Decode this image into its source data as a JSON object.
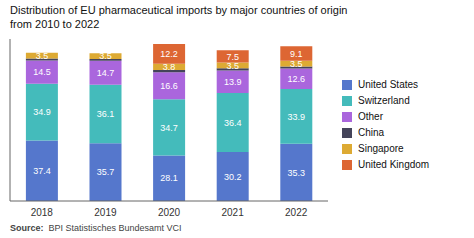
{
  "chart_data": {
    "type": "bar",
    "title": "Distribution of EU pharmaceutical imports by major countries of origin\nfrom 2010 to 2022",
    "categories": [
      "2018",
      "2019",
      "2020",
      "2021",
      "2022"
    ],
    "series": [
      {
        "name": "United States",
        "color": "#5577cc",
        "values": [
          37.4,
          35.7,
          28.1,
          30.2,
          35.3
        ],
        "value_labels": [
          "37.4",
          "35.7",
          "28.1",
          "30.2",
          "35.3"
        ]
      },
      {
        "name": "Switzerland",
        "color": "#44bbbb",
        "values": [
          34.9,
          36.1,
          34.7,
          36.4,
          33.9
        ],
        "value_labels": [
          "34.9",
          "36.1",
          "34.7",
          "36.4",
          "33.9"
        ]
      },
      {
        "name": "Other",
        "color": "#aa66dd",
        "values": [
          14.5,
          14.7,
          16.6,
          13.9,
          12.6
        ],
        "value_labels": [
          "14.5",
          "14.7",
          "16.6",
          "13.9",
          "12.6"
        ]
      },
      {
        "name": "China",
        "color": "#44445a",
        "values": [
          1.2,
          1.2,
          1.5,
          1.5,
          1.2
        ],
        "value_labels": [
          null,
          null,
          null,
          null,
          null
        ]
      },
      {
        "name": "Singapore",
        "color": "#ddaa33",
        "values": [
          3.5,
          3.5,
          3.8,
          3.5,
          3.5
        ],
        "value_labels": [
          "3.5",
          "3.5",
          "3.8",
          "3.5",
          "3.5"
        ]
      },
      {
        "name": "United Kingdom",
        "color": "#dd6633",
        "values": [
          0.0,
          0.0,
          12.2,
          7.5,
          9.1
        ],
        "value_labels": [
          null,
          null,
          "12.2",
          "7.5",
          "9.1"
        ]
      }
    ],
    "stacked": true,
    "data_labels": true,
    "ylim": [
      0,
      100
    ],
    "tick_labels": "x",
    "grid": false,
    "legend": "right",
    "annotations": [
      "Source:  BPI Statistisches Bundesamt VCI"
    ]
  }
}
